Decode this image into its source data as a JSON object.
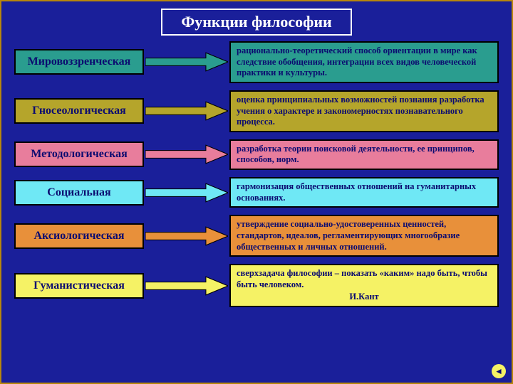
{
  "background_color": "#1a1f9a",
  "border_color": "#b8860b",
  "function_label_color": "#0b0b70",
  "title": {
    "text": "Функции философии",
    "bg": "#1a1f9a",
    "fg": "#ffffff",
    "border": "#ffffff",
    "fontsize": 22
  },
  "rows": [
    {
      "fn": {
        "text": "Мировоззренческая",
        "bg": "#2a9d8f",
        "border": "#000000"
      },
      "arrow": {
        "fill": "#2a9d8f",
        "stroke": "#000000"
      },
      "desc": {
        "text": "рационально-теоретический способ ориентации в мире как следствие обобщения, интеграции всех видов человеческой практики и культуры.",
        "bg": "#2a9d8f",
        "border": "#000000",
        "fg": "#0b0b70"
      }
    },
    {
      "fn": {
        "text": "Гносеологическая",
        "bg": "#b5a52b",
        "border": "#000000"
      },
      "arrow": {
        "fill": "#b5a52b",
        "stroke": "#000000"
      },
      "desc": {
        "text": "оценка принципиальных возможностей познания разработка учения о характере и закономерностях познавательного процесса.",
        "bg": "#b5a52b",
        "border": "#000000",
        "fg": "#0b0b70"
      }
    },
    {
      "fn": {
        "text": "Методологическая",
        "bg": "#e87d9c",
        "border": "#000000"
      },
      "arrow": {
        "fill": "#e87d9c",
        "stroke": "#000000"
      },
      "desc": {
        "text": "разработка теории поисковой деятельности, ее принципов, способов,  норм.",
        "bg": "#e87d9c",
        "border": "#000000",
        "fg": "#0b0b70"
      }
    },
    {
      "fn": {
        "text": "Социальная",
        "bg": "#6fe8f5",
        "border": "#000000"
      },
      "arrow": {
        "fill": "#6fe8f5",
        "stroke": "#000000"
      },
      "desc": {
        "text": "гармонизация общественных отношений на гуманитарных основаниях.",
        "bg": "#6fe8f5",
        "border": "#000000",
        "fg": "#0b0b70"
      }
    },
    {
      "fn": {
        "text": "Аксиологическая",
        "bg": "#e8903a",
        "border": "#000000"
      },
      "arrow": {
        "fill": "#e8903a",
        "stroke": "#000000"
      },
      "desc": {
        "text": "утверждение                  социально-удостоверенных ценностей,\nстандартов, идеалов, регламентирующих многообразие общественных и личных отношений.",
        "bg": "#e8903a",
        "border": "#000000",
        "fg": "#0b0b70"
      }
    },
    {
      "fn": {
        "text": "Гуманистическая",
        "bg": "#f5f265",
        "border": "#000000"
      },
      "arrow": {
        "fill": "#f5f265",
        "stroke": "#000000"
      },
      "desc": {
        "text": "сверхзадача философии – показать «каким» надо быть, чтобы быть человеком.",
        "attribution": "И.Кант",
        "bg": "#f5f265",
        "border": "#000000",
        "fg": "#0b0b70"
      }
    }
  ],
  "nav": {
    "bg": "#f5f265",
    "fg": "#0b0b70",
    "glyph": "◄"
  },
  "arrow_shape": {
    "shaft_h": 10,
    "head_w": 30,
    "head_h": 24,
    "total_w": 112
  },
  "layout": {
    "row_gap": 10,
    "fn_box_w": 182,
    "arrow_gap_w": 120
  }
}
